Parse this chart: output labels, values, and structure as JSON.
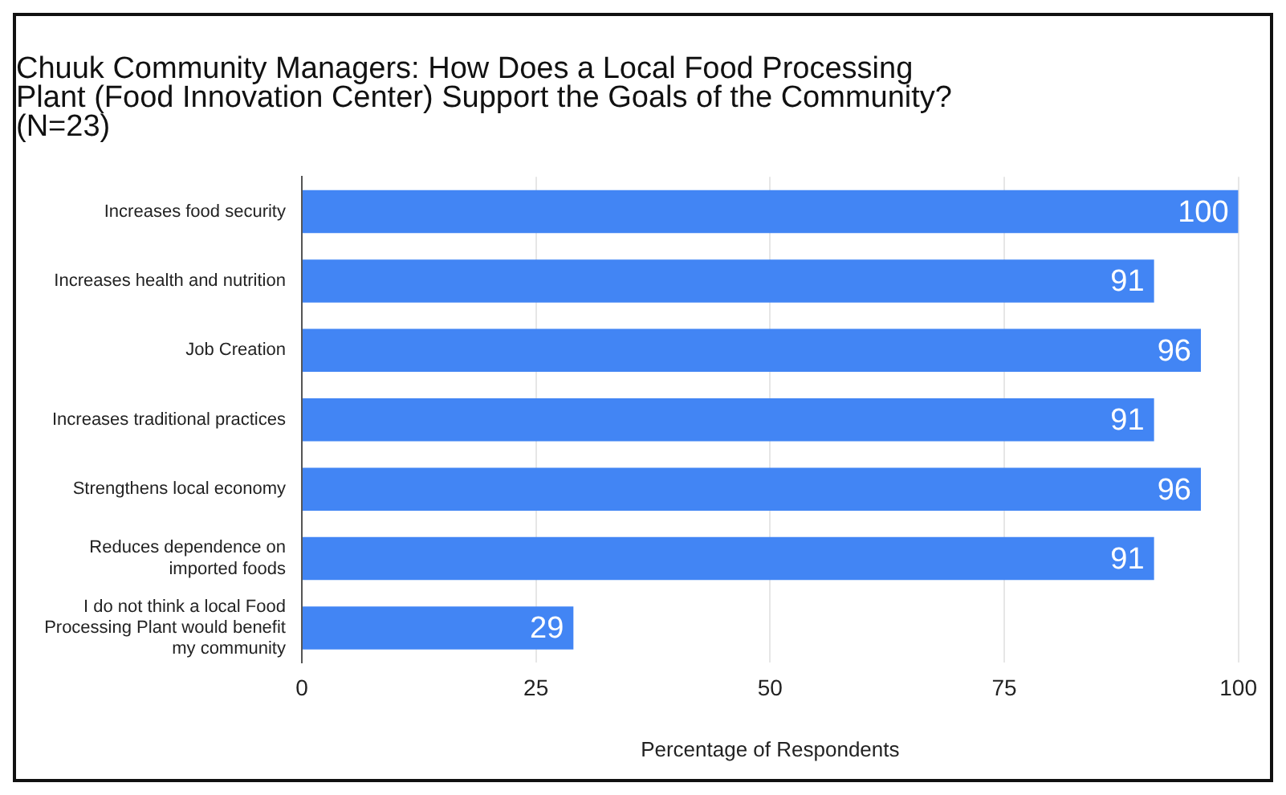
{
  "chart_data": {
    "type": "bar",
    "orientation": "horizontal",
    "title": "Chuuk Community Managers: How Does a Local Food Processing Plant (Food Innovation Center) Support the Goals of the Community? (N=23)",
    "xlabel": "Percentage of Respondents",
    "categories": [
      "Increases food security",
      "Increases health and nutrition",
      "Job Creation",
      "Increases traditional practices",
      "Strengthens local economy",
      "Reduces dependence on imported foods",
      "I do not think a local Food Processing Plant would benefit my community"
    ],
    "values": [
      100,
      91,
      96,
      91,
      96,
      91,
      29
    ],
    "color": "#4285f4",
    "xlim": [
      0,
      100
    ],
    "xticks": [
      0,
      25,
      50,
      75,
      100
    ],
    "grid": "x",
    "data_labels": true,
    "legend": false
  }
}
